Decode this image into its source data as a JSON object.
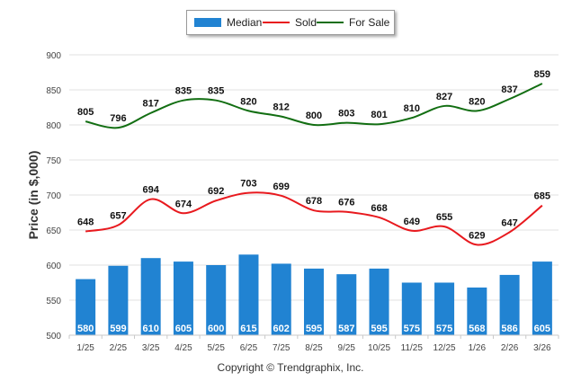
{
  "chart_data": {
    "type": "bar",
    "categories": [
      "1/25",
      "2/25",
      "3/25",
      "4/25",
      "5/25",
      "6/25",
      "7/25",
      "8/25",
      "9/25",
      "10/25",
      "11/25",
      "12/25",
      "1/26",
      "2/26",
      "3/26"
    ],
    "series": [
      {
        "name": "Median",
        "kind": "bar",
        "color": "#2183d2",
        "values": [
          580,
          599,
          610,
          605,
          600,
          615,
          602,
          595,
          587,
          595,
          575,
          575,
          568,
          586,
          605
        ]
      },
      {
        "name": "Sold",
        "kind": "line",
        "color": "#e8191e",
        "values": [
          648,
          657,
          694,
          674,
          692,
          703,
          699,
          678,
          676,
          668,
          649,
          655,
          629,
          647,
          685
        ]
      },
      {
        "name": "For Sale",
        "kind": "line",
        "color": "#126e12",
        "values": [
          805,
          796,
          817,
          835,
          835,
          820,
          812,
          800,
          803,
          801,
          810,
          827,
          820,
          837,
          859
        ]
      }
    ],
    "ylabel": "Price (in $,000)",
    "xlabel": "",
    "ylim": [
      500,
      900
    ],
    "yticks": [
      500,
      550,
      600,
      650,
      700,
      750,
      800,
      850,
      900
    ],
    "grid": true,
    "legend_position": "top-center"
  },
  "footer": {
    "text": "Copyright © Trendgraphix, Inc."
  }
}
